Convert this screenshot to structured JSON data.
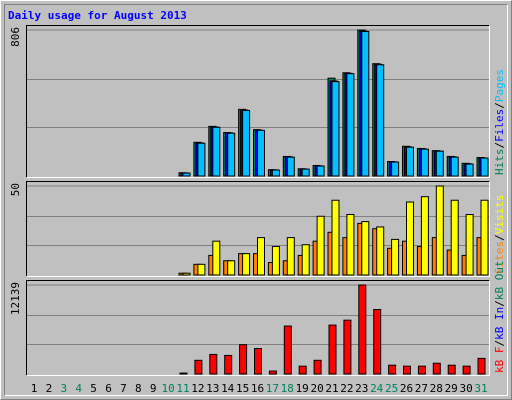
{
  "chart_data": {
    "type": "bar",
    "title": "Daily usage for August 2013",
    "categories": [
      "1",
      "2",
      "3",
      "4",
      "5",
      "6",
      "7",
      "8",
      "9",
      "10",
      "11",
      "12",
      "13",
      "14",
      "15",
      "16",
      "17",
      "18",
      "19",
      "20",
      "21",
      "22",
      "23",
      "24",
      "25",
      "26",
      "27",
      "28",
      "29",
      "30",
      "31"
    ],
    "category_colors": [
      "#000000",
      "#000000",
      "#00805c",
      "#00805c",
      "#000000",
      "#000000",
      "#000000",
      "#000000",
      "#000000",
      "#00805c",
      "#00805c",
      "#000000",
      "#000000",
      "#000000",
      "#000000",
      "#000000",
      "#00805c",
      "#00805c",
      "#000000",
      "#000000",
      "#000000",
      "#000000",
      "#000000",
      "#00805c",
      "#00805c",
      "#000000",
      "#000000",
      "#000000",
      "#000000",
      "#000000",
      "#00805c"
    ],
    "legend_separator": "/",
    "panels": [
      {
        "ylim": [
          0,
          806
        ],
        "yticks": [
          806
        ],
        "series": [
          {
            "name": "Hits",
            "color": "#00805c",
            "values": [
              null,
              null,
              null,
              null,
              null,
              null,
              null,
              null,
              null,
              null,
              18,
              186,
              274,
              240,
              368,
              256,
              35,
              108,
              40,
              58,
              540,
              570,
              806,
              620,
              80,
              164,
              152,
              140,
              108,
              70,
              102
            ]
          },
          {
            "name": "Files",
            "color": "#0000ff",
            "values": [
              null,
              null,
              null,
              null,
              null,
              null,
              null,
              null,
              null,
              null,
              17,
              183,
              271,
              238,
              364,
              253,
              34,
              106,
              39,
              56,
              525,
              567,
              800,
              617,
              78,
              161,
              150,
              138,
              106,
              68,
              100
            ]
          },
          {
            "name": "Pages",
            "color": "#00c0ff",
            "values": [
              null,
              null,
              null,
              null,
              null,
              null,
              null,
              null,
              null,
              null,
              16,
              181,
              269,
              236,
              362,
              252,
              33,
              104,
              38,
              55,
              521,
              565,
              798,
              614,
              77,
              159,
              148,
              137,
              104,
              66,
              99
            ]
          }
        ]
      },
      {
        "ylim": [
          0,
          50
        ],
        "yticks": [
          50
        ],
        "series": [
          {
            "name": "Sites",
            "color": "#ff8000",
            "values": [
              null,
              null,
              null,
              null,
              null,
              null,
              null,
              null,
              null,
              null,
              1,
              6,
              11,
              8,
              12,
              12,
              7,
              8,
              11,
              19,
              24,
              21,
              29,
              26,
              15,
              19,
              16,
              21,
              14,
              11,
              21
            ]
          },
          {
            "name": "Visits",
            "color": "#ffff00",
            "values": [
              null,
              null,
              null,
              null,
              null,
              null,
              null,
              null,
              null,
              null,
              1,
              6,
              19,
              8,
              12,
              21,
              16,
              21,
              17,
              33,
              42,
              34,
              30,
              27,
              20,
              41,
              44,
              50,
              42,
              34,
              42
            ]
          }
        ]
      },
      {
        "ylim": [
          0,
          12139
        ],
        "yticks": [
          12139
        ],
        "series": [
          {
            "name": "kB F",
            "color": "#ff0000",
            "values": [
              null,
              null,
              null,
              null,
              null,
              null,
              null,
              null,
              null,
              null,
              130,
              1868,
              2670,
              2535,
              4000,
              3470,
              400,
              6540,
              1070,
              1870,
              6670,
              7340,
              12139,
              8800,
              1200,
              1070,
              1070,
              1470,
              1200,
              1070,
              2130
            ]
          }
        ],
        "other_legend": [
          {
            "name": "kB In",
            "color": "#0000ff"
          },
          {
            "name": "kB Out",
            "color": "#00805c"
          }
        ]
      }
    ]
  }
}
